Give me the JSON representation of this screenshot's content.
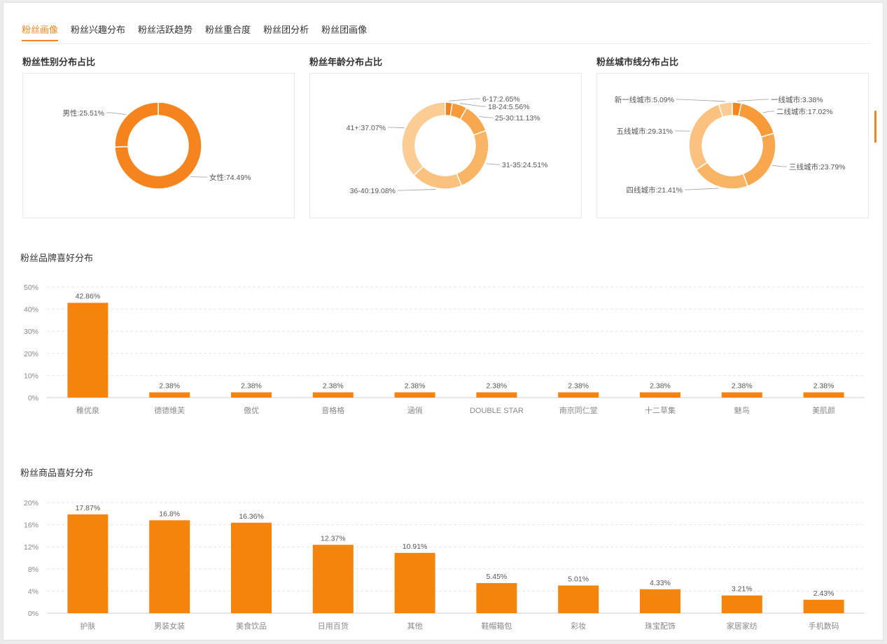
{
  "tabs": [
    {
      "label": "粉丝画像",
      "active": true
    },
    {
      "label": "粉丝兴趣分布",
      "active": false
    },
    {
      "label": "粉丝活跃趋势",
      "active": false
    },
    {
      "label": "粉丝重合度",
      "active": false
    },
    {
      "label": "粉丝团分析",
      "active": false
    },
    {
      "label": "粉丝团画像",
      "active": false
    }
  ],
  "colors": {
    "accent": "#f5841f",
    "bar": "#f5840c",
    "grid": "#e6e6e6",
    "age_palette": [
      "#f5841f",
      "#f69a3a",
      "#f7a84e",
      "#f8b566",
      "#fac17f",
      "#fbcc94"
    ],
    "city_palette": [
      "#f5841f",
      "#f69a3a",
      "#f7a84e",
      "#f8b566",
      "#fac17f",
      "#fbcc94"
    ]
  },
  "gender": {
    "title": "粉丝性别分布占比",
    "chart_data": {
      "type": "pie",
      "slices": [
        {
          "label": "女性:74.49%",
          "value": 74.49,
          "color": "#f5841f"
        },
        {
          "label": "男性:25.51%",
          "value": 25.51,
          "color": "#f5841f"
        }
      ]
    }
  },
  "age": {
    "title": "粉丝年龄分布占比",
    "chart_data": {
      "type": "pie",
      "slices": [
        {
          "label": "6-17:2.65%",
          "value": 2.65
        },
        {
          "label": "18-24:5.56%",
          "value": 5.56
        },
        {
          "label": "25-30:11.13%",
          "value": 11.13
        },
        {
          "label": "31-35:24.51%",
          "value": 24.51
        },
        {
          "label": "36-40:19.08%",
          "value": 19.08
        },
        {
          "label": "41+:37.07%",
          "value": 37.07
        }
      ]
    }
  },
  "city": {
    "title": "粉丝城市线分布占比",
    "chart_data": {
      "type": "pie",
      "slices": [
        {
          "label": "一线城市:3.38%",
          "value": 3.38
        },
        {
          "label": "二线城市:17.02%",
          "value": 17.02
        },
        {
          "label": "三线城市:23.79%",
          "value": 23.79
        },
        {
          "label": "四线城市:21.41%",
          "value": 21.41
        },
        {
          "label": "五线城市:29.31%",
          "value": 29.31
        },
        {
          "label": "新一线城市:5.09%",
          "value": 5.09
        }
      ]
    }
  },
  "brand": {
    "title": "粉丝品牌喜好分布",
    "chart_data": {
      "type": "bar",
      "categories": [
        "稚优泉",
        "德德维芙",
        "傲优",
        "音格格",
        "涵俏",
        "DOUBLE STAR",
        "南京同仁堂",
        "十二草集",
        "魅鸟",
        "美肌颜"
      ],
      "values": [
        42.86,
        2.38,
        2.38,
        2.38,
        2.38,
        2.38,
        2.38,
        2.38,
        2.38,
        2.38
      ],
      "value_labels": [
        "42.86%",
        "2.38%",
        "2.38%",
        "2.38%",
        "2.38%",
        "2.38%",
        "2.38%",
        "2.38%",
        "2.38%",
        "2.38%"
      ],
      "yticks": [
        "0%",
        "10%",
        "20%",
        "30%",
        "40%",
        "50%"
      ],
      "ylim": [
        0,
        50
      ]
    }
  },
  "product": {
    "title": "粉丝商品喜好分布",
    "chart_data": {
      "type": "bar",
      "categories": [
        "护肤",
        "男装女装",
        "美食饮品",
        "日用百货",
        "其他",
        "鞋帽箱包",
        "彩妆",
        "珠宝配饰",
        "家居家纺",
        "手机数码"
      ],
      "values": [
        17.87,
        16.8,
        16.36,
        12.37,
        10.91,
        5.45,
        5.01,
        4.33,
        3.21,
        2.43
      ],
      "value_labels": [
        "17.87%",
        "16.8%",
        "16.36%",
        "12.37%",
        "10.91%",
        "5.45%",
        "5.01%",
        "4.33%",
        "3.21%",
        "2.43%"
      ],
      "yticks": [
        "0%",
        "4%",
        "8%",
        "12%",
        "16%",
        "20%"
      ],
      "ylim": [
        0,
        20
      ]
    }
  }
}
